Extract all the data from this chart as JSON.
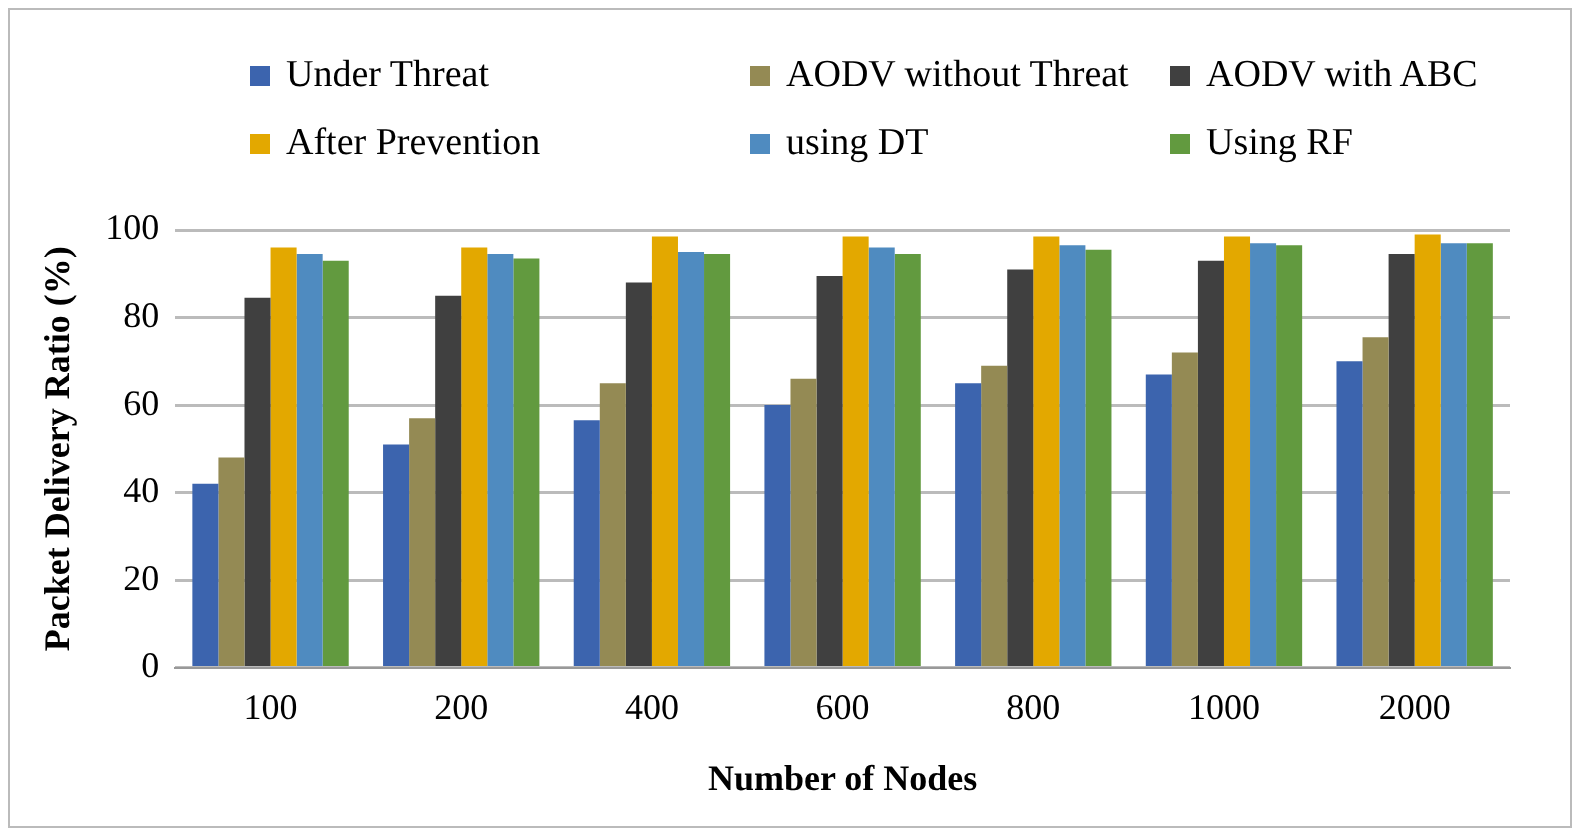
{
  "chart_data": {
    "type": "bar",
    "xlabel": "Number of Nodes",
    "ylabel": "Packet Delivery Ratio (%)",
    "categories": [
      "100",
      "200",
      "400",
      "600",
      "800",
      "1000",
      "2000"
    ],
    "series": [
      {
        "name": "Under Threat",
        "color": "#3c64ae",
        "values": [
          42,
          51,
          56.5,
          60,
          65,
          67,
          70
        ]
      },
      {
        "name": "AODV without Threat",
        "color": "#948a54",
        "values": [
          48,
          57,
          65,
          66,
          69,
          72,
          75.5
        ]
      },
      {
        "name": "AODV with ABC",
        "color": "#404040",
        "values": [
          84.5,
          85,
          88,
          89.5,
          91,
          93,
          94.5
        ]
      },
      {
        "name": "After Prevention",
        "color": "#e3a800",
        "values": [
          96,
          96,
          98.5,
          98.5,
          98.5,
          98.5,
          99
        ]
      },
      {
        "name": "using DT",
        "color": "#4f8bc0",
        "values": [
          94.5,
          94.5,
          95,
          96,
          96.5,
          97,
          97
        ]
      },
      {
        "name": "Using RF",
        "color": "#629a3f",
        "values": [
          93,
          93.5,
          94.5,
          94.5,
          95.5,
          96.5,
          97
        ]
      }
    ],
    "ylim": [
      0,
      100
    ],
    "yticks": [
      0,
      20,
      40,
      60,
      80,
      100
    ],
    "grid": "y",
    "legend": "top"
  }
}
